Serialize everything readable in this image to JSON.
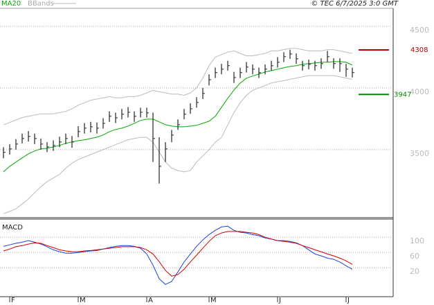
{
  "chart_data": [
    {
      "type": "ohlc",
      "source": "© TEC 6/7/2025 3:0 GMT",
      "ylim": [
        2960,
        4645
      ],
      "yticks": [
        3500,
        4000,
        4500
      ],
      "grid": true,
      "bar_color": "#222222",
      "high": [
        3520,
        3545,
        3585,
        3630,
        3650,
        3630,
        3590,
        3560,
        3575,
        3605,
        3630,
        3610,
        3690,
        3715,
        3725,
        3720,
        3755,
        3810,
        3800,
        3830,
        3845,
        3810,
        3840,
        3840,
        3800,
        3600,
        3560,
        3660,
        3745,
        3830,
        3875,
        3925,
        4000,
        4110,
        4165,
        4195,
        4220,
        4130,
        4165,
        4210,
        4190,
        4165,
        4190,
        4220,
        4250,
        4290,
        4310,
        4280,
        4220,
        4230,
        4220,
        4240,
        4300,
        4240,
        4240,
        4195,
        4165
      ],
      "low": [
        3430,
        3460,
        3500,
        3550,
        3565,
        3545,
        3500,
        3480,
        3490,
        3520,
        3545,
        3515,
        3600,
        3630,
        3640,
        3630,
        3670,
        3725,
        3715,
        3745,
        3760,
        3725,
        3760,
        3760,
        3400,
        3225,
        3400,
        3560,
        3660,
        3745,
        3790,
        3840,
        3910,
        4020,
        4080,
        4110,
        4140,
        4040,
        4080,
        4125,
        4110,
        4080,
        4110,
        4140,
        4165,
        4210,
        4235,
        4195,
        4140,
        4150,
        4140,
        4155,
        4210,
        4155,
        4130,
        4090,
        4085
      ],
      "close": [
        3478,
        3506,
        3545,
        3590,
        3607,
        3590,
        3545,
        3522,
        3534,
        3562,
        3590,
        3562,
        3646,
        3674,
        3685,
        3674,
        3713,
        3770,
        3758,
        3787,
        3803,
        3770,
        3803,
        3798,
        3590,
        3365,
        3506,
        3618,
        3702,
        3787,
        3831,
        3882,
        3955,
        4067,
        4124,
        4152,
        4180,
        4084,
        4124,
        4169,
        4152,
        4124,
        4152,
        4180,
        4208,
        4253,
        4275,
        4236,
        4180,
        4191,
        4180,
        4197,
        4253,
        4197,
        4197,
        4152,
        4124
      ],
      "series": [
        {
          "name": "MA20",
          "color": "#00aa00",
          "values": [
            3320,
            3365,
            3399,
            3433,
            3466,
            3489,
            3506,
            3511,
            3522,
            3534,
            3551,
            3562,
            3573,
            3579,
            3590,
            3601,
            3618,
            3646,
            3663,
            3674,
            3691,
            3713,
            3736,
            3747,
            3747,
            3725,
            3702,
            3691,
            3685,
            3685,
            3691,
            3697,
            3713,
            3730,
            3770,
            3843,
            3916,
            3983,
            4039,
            4079,
            4096,
            4112,
            4129,
            4140,
            4152,
            4163,
            4174,
            4180,
            4191,
            4197,
            4202,
            4208,
            4208,
            4213,
            4213,
            4208,
            4185
          ]
        },
        {
          "name": "BBands",
          "color": "#bbbbbb",
          "upper": [
            3700,
            3720,
            3740,
            3760,
            3770,
            3780,
            3790,
            3790,
            3790,
            3800,
            3810,
            3830,
            3860,
            3880,
            3900,
            3910,
            3920,
            3930,
            3920,
            3920,
            3930,
            3930,
            3940,
            3960,
            3980,
            3970,
            3960,
            3950,
            3950,
            3940,
            3960,
            4000,
            4080,
            4180,
            4250,
            4270,
            4290,
            4300,
            4280,
            4260,
            4260,
            4270,
            4280,
            4300,
            4300,
            4310,
            4320,
            4320,
            4310,
            4300,
            4300,
            4300,
            4310,
            4310,
            4300,
            4290,
            4280
          ],
          "lower": [
            2980,
            3000,
            3020,
            3060,
            3100,
            3150,
            3200,
            3240,
            3270,
            3300,
            3350,
            3390,
            3420,
            3440,
            3460,
            3480,
            3500,
            3520,
            3540,
            3560,
            3580,
            3590,
            3600,
            3600,
            3560,
            3480,
            3400,
            3350,
            3330,
            3320,
            3330,
            3400,
            3450,
            3500,
            3560,
            3600,
            3700,
            3800,
            3880,
            3940,
            3980,
            4000,
            4020,
            4040,
            4050,
            4060,
            4070,
            4080,
            4090,
            4100,
            4100,
            4100,
            4100,
            4100,
            4090,
            4080,
            4070
          ]
        }
      ],
      "annotations": [
        {
          "value": 4308,
          "color": "#b00000"
        },
        {
          "value": 3947,
          "color": "#008800"
        }
      ]
    },
    {
      "type": "line",
      "title": "MACD",
      "categories": [
        null,
        "F",
        null,
        null,
        null,
        null,
        null,
        null,
        null,
        null,
        null,
        null,
        "M",
        null,
        null,
        null,
        null,
        null,
        null,
        null,
        null,
        null,
        null,
        "A",
        null,
        null,
        null,
        null,
        null,
        null,
        null,
        null,
        null,
        "M",
        null,
        null,
        null,
        null,
        null,
        null,
        null,
        null,
        null,
        null,
        "J",
        null,
        null,
        null,
        null,
        null,
        null,
        null,
        null,
        null,
        null,
        "J",
        null
      ],
      "ylim": [
        -56,
        144
      ],
      "yticks": [
        20,
        60,
        100
      ],
      "grid": true,
      "series": [
        {
          "color": "#1f3fe0",
          "values": [
            76,
            80,
            84,
            87,
            91,
            87,
            82,
            75,
            67,
            62,
            58,
            58,
            60,
            62,
            64,
            65,
            69,
            73,
            76,
            78,
            78,
            76,
            71,
            56,
            27,
            -9,
            -24,
            -16,
            9,
            35,
            56,
            76,
            93,
            107,
            118,
            127,
            129,
            118,
            113,
            111,
            107,
            104,
            98,
            95,
            91,
            91,
            89,
            85,
            78,
            67,
            56,
            51,
            45,
            42,
            35,
            25,
            16
          ]
        },
        {
          "color": "#d00000",
          "values": [
            64,
            69,
            75,
            78,
            82,
            85,
            84,
            78,
            73,
            67,
            64,
            62,
            62,
            64,
            65,
            67,
            69,
            71,
            73,
            75,
            75,
            75,
            73,
            67,
            56,
            36,
            13,
            -2,
            2,
            16,
            35,
            53,
            71,
            89,
            104,
            111,
            115,
            115,
            115,
            113,
            111,
            107,
            100,
            95,
            91,
            89,
            87,
            84,
            78,
            73,
            67,
            62,
            56,
            51,
            45,
            38,
            29
          ]
        }
      ]
    }
  ]
}
